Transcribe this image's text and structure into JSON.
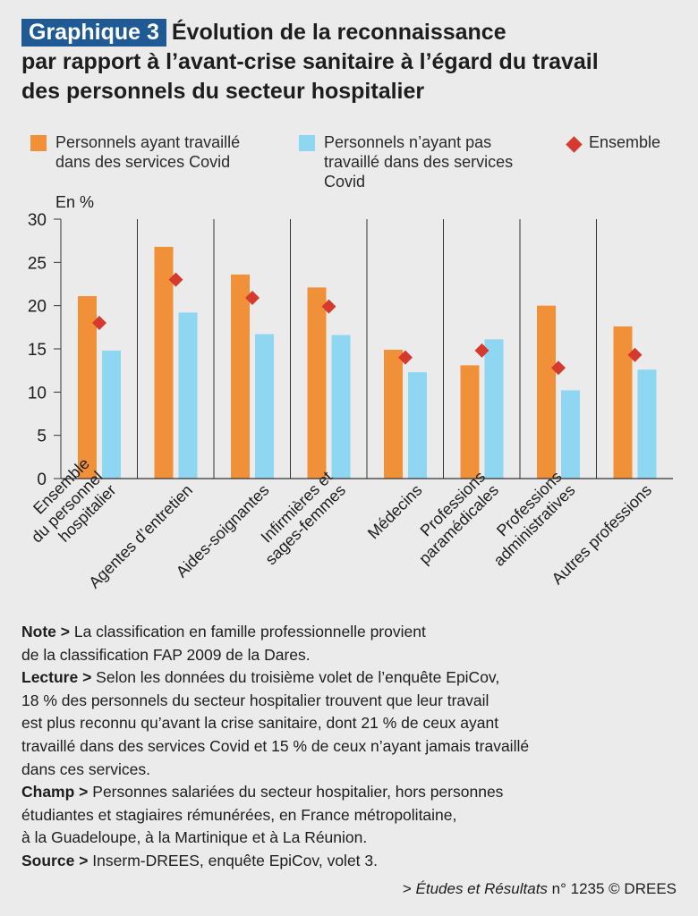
{
  "header": {
    "badge": "Graphique 3",
    "title_line1": "Évolution de la reconnaissance",
    "title_line2": "par rapport à l’avant-crise sanitaire à l’égard du travail",
    "title_line3": "des personnels du secteur hospitalier"
  },
  "colors": {
    "badge_bg": "#1f5a94",
    "covid": "#f0913a",
    "non_covid": "#8fd6f2",
    "ensemble": "#d63a2e"
  },
  "legend": {
    "covid": "Personnels ayant travaillé\ndans des services Covid",
    "non_covid": "Personnels n’ayant pas\ntravaillé dans des services\nCovid",
    "ensemble": "Ensemble"
  },
  "chart_data": {
    "type": "bar",
    "ylabel": "En %",
    "ylim": [
      0,
      30
    ],
    "yticks": [
      0,
      5,
      10,
      15,
      20,
      25,
      30
    ],
    "categories": [
      "Ensemble\ndu personnel\nhospitalier",
      "Agentes d’entretien",
      "Aides-soignantes",
      "Infirmières et\nsages-femmes",
      "Médecins",
      "Professions\nparamédicales",
      "Professions\nadministratives",
      "Autres professions"
    ],
    "series": [
      {
        "name": "Personnels ayant travaillé dans des services Covid",
        "kind": "bar",
        "values": [
          21.1,
          26.8,
          23.6,
          22.1,
          14.9,
          13.1,
          20.0,
          17.6
        ]
      },
      {
        "name": "Personnels n’ayant pas travaillé dans des services Covid",
        "kind": "bar",
        "values": [
          14.8,
          19.2,
          16.7,
          16.6,
          12.3,
          16.1,
          10.2,
          12.6
        ]
      },
      {
        "name": "Ensemble",
        "kind": "marker",
        "values": [
          18.0,
          23.0,
          20.9,
          19.9,
          14.0,
          14.8,
          12.8,
          14.3
        ]
      }
    ]
  },
  "notes": {
    "note_label": "Note >",
    "note_text": " La classification en famille professionnelle provient\nde la classification FAP 2009 de la Dares.",
    "lecture_label": "Lecture >",
    "lecture_text": " Selon les données du troisième volet de l’enquête EpiCov,\n18 % des personnels du secteur hospitalier trouvent que leur travail\nest plus reconnu qu’avant la crise sanitaire, dont 21 % de ceux ayant\ntravaillé dans des services Covid et 15 % de ceux n’ayant jamais travaillé\ndans ces services.",
    "champ_label": "Champ >",
    "champ_text": " Personnes salariées du secteur hospitalier, hors personnes\nétudiantes et stagiaires rémunérées, en France métropolitaine,\nà la Guadeloupe, à la Martinique et à La Réunion.",
    "source_label": "Source >",
    "source_text": " Inserm-DREES, enquête EpiCov, volet 3."
  },
  "footer": {
    "prefix": "> ",
    "publication": "Études et Résultats",
    "suffix": " n° 1235 © DREES"
  }
}
